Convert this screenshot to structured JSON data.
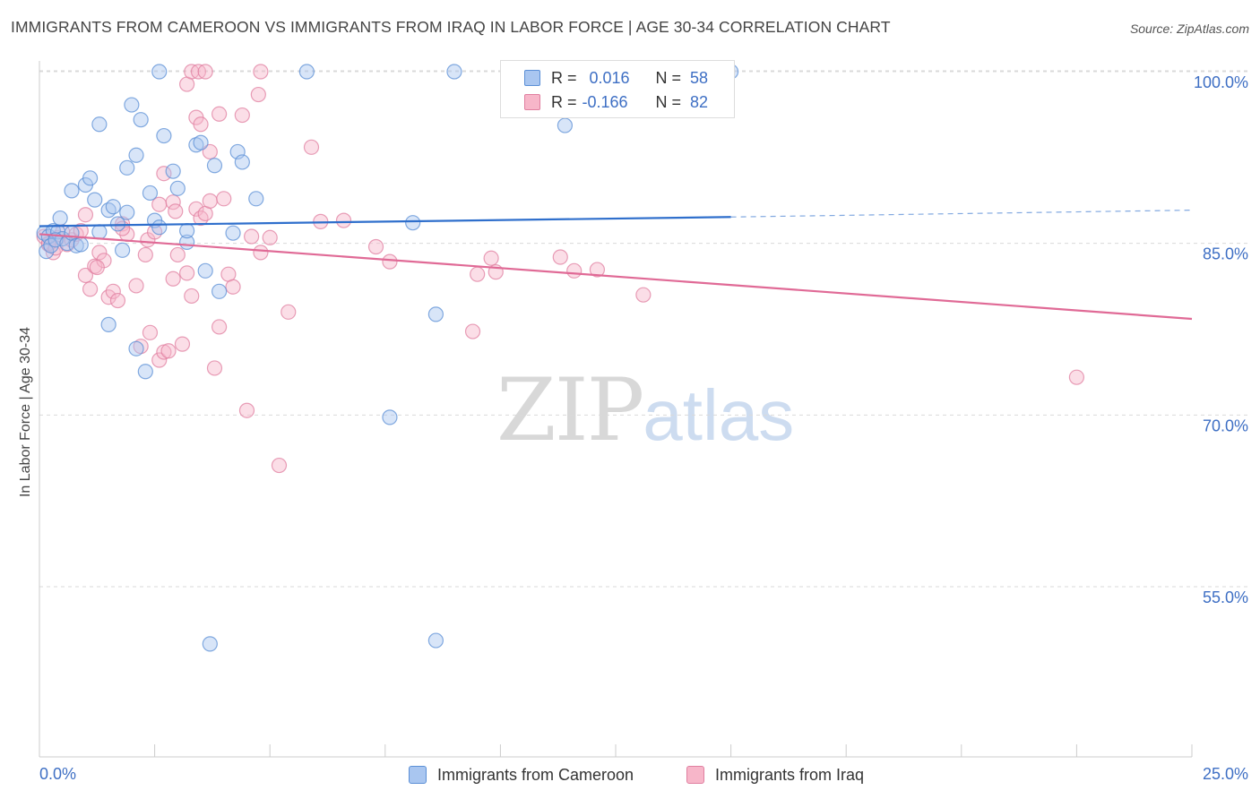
{
  "title": "IMMIGRANTS FROM CAMEROON VS IMMIGRANTS FROM IRAQ IN LABOR FORCE | AGE 30-34 CORRELATION CHART",
  "source": "Source: ZipAtlas.com",
  "watermark": {
    "zip": "ZIP",
    "atlas": "atlas"
  },
  "legend_stats": [
    {
      "r_label": "R =",
      "r_value": "0.016",
      "n_label": "N =",
      "n_value": "58",
      "color": "#a9c6f0"
    },
    {
      "r_label": "R =",
      "r_value": "-0.166",
      "n_label": "N =",
      "n_value": "82",
      "color": "#f7b6c9"
    }
  ],
  "colors": {
    "cameroon_fill": "#a9c6f0",
    "cameroon_edge": "#5b8fd6",
    "cameroon_line": "#2f6fcc",
    "iraq_fill": "#f7b6c9",
    "iraq_edge": "#e07fa0",
    "iraq_line": "#e06a96",
    "tick_label": "#3e6fc4",
    "grid": "#d9d9d9"
  },
  "chart_data": {
    "type": "scatter",
    "title": "IMMIGRANTS FROM CAMEROON VS IMMIGRANTS FROM IRAQ IN LABOR FORCE | AGE 30-34 CORRELATION CHART",
    "xlabel": "",
    "ylabel": "In Labor Force | Age 30-34",
    "xlim": [
      0,
      25
    ],
    "ylim": [
      40,
      102
    ],
    "x_tick_labels": [
      "0.0%",
      "25.0%"
    ],
    "y_ticks": [
      55,
      70,
      85,
      100
    ],
    "y_tick_labels": [
      "55.0%",
      "70.0%",
      "85.0%",
      "100.0%"
    ],
    "grid": true,
    "legend_position": "bottom",
    "series": [
      {
        "name": "Immigrants from Cameroon",
        "r": 0.016,
        "n": 58,
        "trend": {
          "x0": 0,
          "y0": 86.5,
          "x1": 15,
          "y1": 87.3,
          "dashed_to_x": 25,
          "dashed_to_y": 87.9
        },
        "points": [
          [
            0.1,
            85.9
          ],
          [
            0.2,
            85.6
          ],
          [
            0.3,
            86.1
          ],
          [
            0.15,
            84.3
          ],
          [
            0.25,
            84.8
          ],
          [
            0.4,
            86.0
          ],
          [
            0.5,
            85.4
          ],
          [
            0.35,
            85.3
          ],
          [
            0.45,
            87.2
          ],
          [
            0.6,
            85.0
          ],
          [
            0.7,
            85.9
          ],
          [
            0.8,
            84.8
          ],
          [
            0.9,
            84.9
          ],
          [
            0.7,
            89.6
          ],
          [
            1.0,
            90.1
          ],
          [
            1.1,
            90.7
          ],
          [
            1.2,
            88.8
          ],
          [
            1.3,
            86.0
          ],
          [
            1.5,
            87.9
          ],
          [
            1.6,
            88.2
          ],
          [
            1.7,
            86.7
          ],
          [
            1.8,
            84.4
          ],
          [
            1.9,
            87.7
          ],
          [
            1.3,
            95.4
          ],
          [
            1.9,
            91.6
          ],
          [
            2.0,
            97.1
          ],
          [
            2.1,
            92.7
          ],
          [
            2.2,
            95.8
          ],
          [
            2.4,
            89.4
          ],
          [
            2.5,
            87.0
          ],
          [
            2.6,
            86.4
          ],
          [
            2.7,
            94.4
          ],
          [
            2.9,
            91.3
          ],
          [
            3.0,
            89.8
          ],
          [
            3.2,
            85.1
          ],
          [
            3.2,
            86.1
          ],
          [
            3.4,
            93.6
          ],
          [
            3.5,
            93.8
          ],
          [
            3.6,
            82.6
          ],
          [
            3.8,
            91.8
          ],
          [
            3.9,
            80.8
          ],
          [
            4.2,
            85.9
          ],
          [
            4.3,
            93.0
          ],
          [
            4.4,
            92.1
          ],
          [
            4.7,
            88.9
          ],
          [
            2.6,
            100.0
          ],
          [
            5.8,
            100.0
          ],
          [
            9.0,
            100.0
          ],
          [
            15.0,
            100.0
          ],
          [
            11.4,
            95.3
          ],
          [
            1.5,
            77.9
          ],
          [
            2.1,
            75.8
          ],
          [
            2.3,
            73.8
          ],
          [
            7.6,
            69.8
          ],
          [
            8.1,
            86.8
          ],
          [
            8.6,
            78.8
          ],
          [
            3.7,
            50.0
          ],
          [
            8.6,
            50.3
          ]
        ]
      },
      {
        "name": "Immigrants from Iraq",
        "r": -0.166,
        "n": 82,
        "trend": {
          "x0": 0,
          "y0": 85.8,
          "x1": 25,
          "y1": 78.4
        },
        "points": [
          [
            0.1,
            85.6
          ],
          [
            0.2,
            84.9
          ],
          [
            0.3,
            84.2
          ],
          [
            0.4,
            85.5
          ],
          [
            0.5,
            86.0
          ],
          [
            0.6,
            84.9
          ],
          [
            0.7,
            85.3
          ],
          [
            0.8,
            85.8
          ],
          [
            0.9,
            86.1
          ],
          [
            0.2,
            85.0
          ],
          [
            0.35,
            84.6
          ],
          [
            1.0,
            87.5
          ],
          [
            1.0,
            82.2
          ],
          [
            1.1,
            81.0
          ],
          [
            1.2,
            83.0
          ],
          [
            1.3,
            84.2
          ],
          [
            1.4,
            83.5
          ],
          [
            1.5,
            80.3
          ],
          [
            1.6,
            80.8
          ],
          [
            1.7,
            80.0
          ],
          [
            1.8,
            86.7
          ],
          [
            1.9,
            85.8
          ],
          [
            1.8,
            86.3
          ],
          [
            2.1,
            81.3
          ],
          [
            2.2,
            76.0
          ],
          [
            2.3,
            84.0
          ],
          [
            2.35,
            85.3
          ],
          [
            2.4,
            77.2
          ],
          [
            2.5,
            86.0
          ],
          [
            2.6,
            74.8
          ],
          [
            2.7,
            75.5
          ],
          [
            2.8,
            75.6
          ],
          [
            2.6,
            88.4
          ],
          [
            2.9,
            88.6
          ],
          [
            2.95,
            87.8
          ],
          [
            2.7,
            91.1
          ],
          [
            3.0,
            84.0
          ],
          [
            3.1,
            76.2
          ],
          [
            2.9,
            81.9
          ],
          [
            3.2,
            82.4
          ],
          [
            3.3,
            80.4
          ],
          [
            3.4,
            88.0
          ],
          [
            3.5,
            87.2
          ],
          [
            3.6,
            87.6
          ],
          [
            3.7,
            88.7
          ],
          [
            3.8,
            74.1
          ],
          [
            3.9,
            77.7
          ],
          [
            4.0,
            88.9
          ],
          [
            3.4,
            96.0
          ],
          [
            3.5,
            95.4
          ],
          [
            3.7,
            93.0
          ],
          [
            3.9,
            96.3
          ],
          [
            4.1,
            82.3
          ],
          [
            4.2,
            81.2
          ],
          [
            4.4,
            96.2
          ],
          [
            4.5,
            70.4
          ],
          [
            4.6,
            85.6
          ],
          [
            4.8,
            84.2
          ],
          [
            4.75,
            98.0
          ],
          [
            3.2,
            98.9
          ],
          [
            3.3,
            100.0
          ],
          [
            3.45,
            100.0
          ],
          [
            3.6,
            100.0
          ],
          [
            4.8,
            100.0
          ],
          [
            5.0,
            85.5
          ],
          [
            5.2,
            65.6
          ],
          [
            5.4,
            79.0
          ],
          [
            5.9,
            93.4
          ],
          [
            6.1,
            86.9
          ],
          [
            6.6,
            87.0
          ],
          [
            7.3,
            84.7
          ],
          [
            7.6,
            83.4
          ],
          [
            9.4,
            77.3
          ],
          [
            9.5,
            82.3
          ],
          [
            9.8,
            83.7
          ],
          [
            9.9,
            82.5
          ],
          [
            11.3,
            83.8
          ],
          [
            11.6,
            82.6
          ],
          [
            12.1,
            82.7
          ],
          [
            13.1,
            80.5
          ],
          [
            22.5,
            73.3
          ],
          [
            1.25,
            82.9
          ]
        ]
      }
    ]
  },
  "axes": {
    "x_start_label": "0.0%",
    "x_end_label": "25.0%"
  }
}
